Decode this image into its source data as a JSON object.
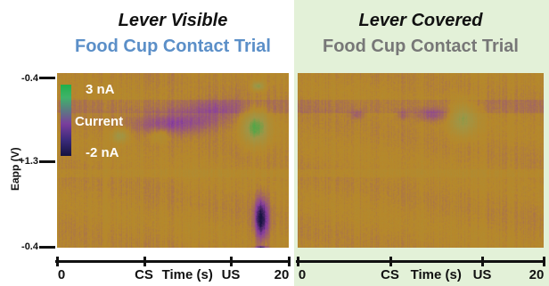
{
  "panels": [
    {
      "title": "Lever Visible",
      "subtitle": "Food Cup Contact Trial",
      "subtitle_color": "#5b8fc8"
    },
    {
      "title": "Lever Covered",
      "subtitle": "Food Cup Contact Trial",
      "subtitle_color": "#777777"
    }
  ],
  "legend": {
    "max": "3 nA",
    "label": "Current",
    "min": "-2 nA"
  },
  "chart_data": {
    "type": "heatmap",
    "ylabel": "Eapp (V)",
    "ytick_labels": [
      "-0.4",
      "+1.3",
      "-0.4"
    ],
    "xlabel": "Time (s)",
    "xticks": [
      {
        "value": 0,
        "label": "0"
      },
      {
        "value": 7.5,
        "label": "CS"
      },
      {
        "value": 15,
        "label": "US"
      },
      {
        "value": 20,
        "label": "20"
      }
    ],
    "xlim": [
      0,
      20
    ],
    "color_range_nA": [
      -2,
      3
    ],
    "colors": {
      "background": "#b7882a",
      "high": "#21b04b",
      "mid": "#8a3fa0",
      "low": "#15133f"
    },
    "panels": [
      {
        "name": "Lever Visible",
        "blobs": [
          {
            "t": 13.5,
            "e": 1.25,
            "width_s": 7.5,
            "height_v": 0.34,
            "current_nA": -0.6
          },
          {
            "t": 10.2,
            "e": 1.1,
            "width_s": 8.5,
            "height_v": 0.3,
            "current_nA": -0.9
          },
          {
            "t": 17.1,
            "e": 1.05,
            "width_s": 2.5,
            "height_v": 0.45,
            "current_nA": 2.3
          },
          {
            "t": 8.8,
            "e": 0.95,
            "width_s": 2.2,
            "height_v": 0.2,
            "current_nA": 0.6
          },
          {
            "t": 5.4,
            "e": 0.95,
            "width_s": 1.6,
            "height_v": 0.18,
            "current_nA": 1.5
          },
          {
            "t": 17.6,
            "e": -0.05,
            "width_s": 1.4,
            "height_v": 0.6,
            "current_nA": -2
          },
          {
            "t": 17.3,
            "e": 1.55,
            "width_s": 1.2,
            "height_v": 0.12,
            "current_nA": 1.8
          },
          {
            "t": 17.6,
            "e": -0.4,
            "width_s": 1.2,
            "height_v": 0.05,
            "current_nA": -2
          }
        ]
      },
      {
        "name": "Lever Covered",
        "blobs": [
          {
            "t": 13.4,
            "e": 1.15,
            "width_s": 2.4,
            "height_v": 0.45,
            "current_nA": 1.6
          },
          {
            "t": 11.0,
            "e": 1.2,
            "width_s": 3.8,
            "height_v": 0.18,
            "current_nA": -0.8
          },
          {
            "t": 4.8,
            "e": 1.2,
            "width_s": 1.2,
            "height_v": 0.12,
            "current_nA": -0.6
          },
          {
            "t": 8.5,
            "e": 1.2,
            "width_s": 1.0,
            "height_v": 0.12,
            "current_nA": -0.5
          }
        ]
      }
    ]
  }
}
